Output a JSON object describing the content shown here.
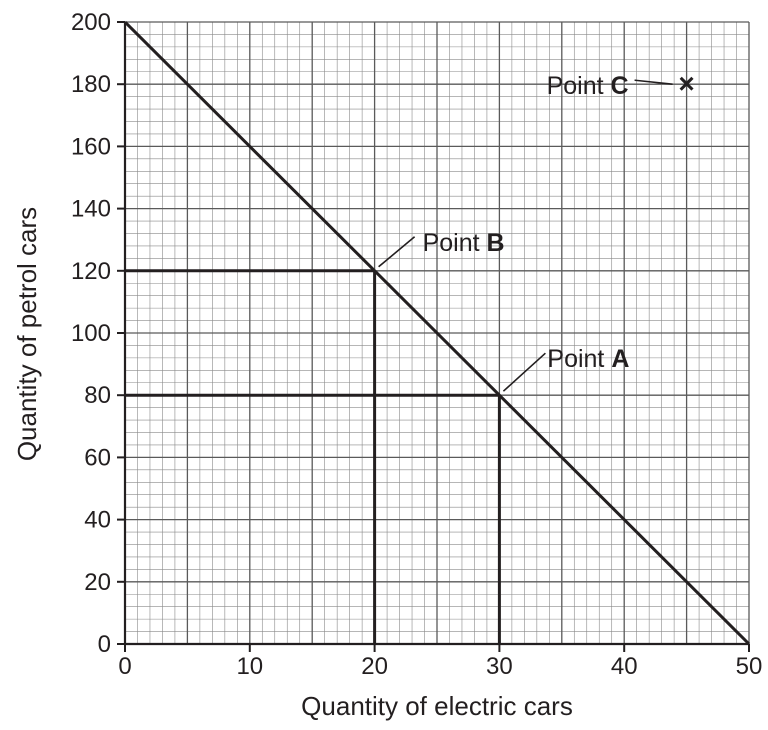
{
  "chart_data": {
    "type": "line",
    "title": "",
    "xlabel": "Quantity of electric cars",
    "ylabel": "Quantity of petrol cars",
    "xlim": [
      0,
      50
    ],
    "ylim": [
      0,
      200
    ],
    "grid": true,
    "x_ticks": [
      "0",
      "10",
      "20",
      "30",
      "40",
      "50"
    ],
    "y_ticks": [
      "0",
      "20",
      "40",
      "60",
      "80",
      "100",
      "120",
      "140",
      "160",
      "180",
      "200"
    ],
    "series": [
      {
        "x": [
          0,
          50
        ],
        "y": [
          200,
          0
        ]
      }
    ],
    "reference_lines": [
      {
        "from": [
          0,
          120
        ],
        "to": [
          20,
          120
        ]
      },
      {
        "from": [
          20,
          120
        ],
        "to": [
          20,
          0
        ]
      },
      {
        "from": [
          0,
          80
        ],
        "to": [
          30,
          80
        ]
      },
      {
        "from": [
          30,
          80
        ],
        "to": [
          30,
          0
        ]
      }
    ],
    "annotations": [
      {
        "prefix": "Point ",
        "letter": "A",
        "x": 30,
        "y": 80
      },
      {
        "prefix": "Point ",
        "letter": "B",
        "x": 20,
        "y": 120
      },
      {
        "prefix": "Point ",
        "letter": "C",
        "x": 45,
        "y": 180,
        "marker": "×"
      }
    ],
    "colors": {
      "grid_minor": "#8a8a8a",
      "grid_major": "#5a5a5a",
      "line": "#231f20"
    }
  }
}
